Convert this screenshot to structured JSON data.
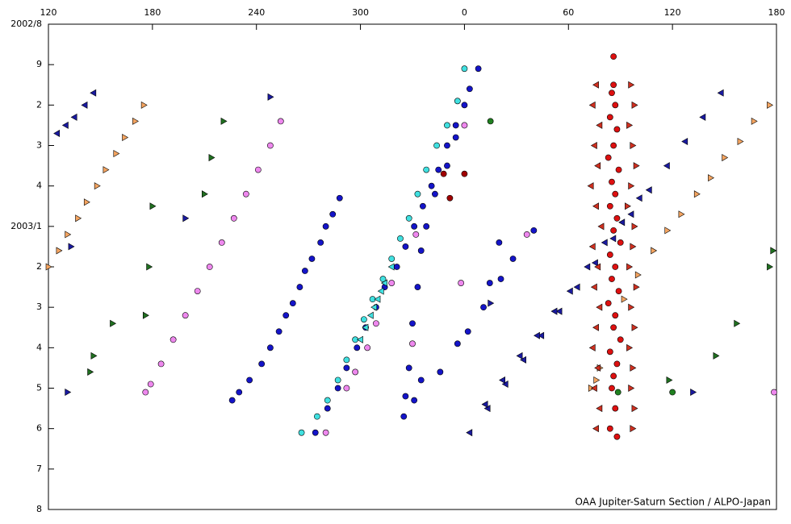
{
  "chart_data": {
    "type": "scatter",
    "annotation": "OAA Jupiter-Saturn Section / ALPO-Japan",
    "xlim": [
      120,
      540
    ],
    "xticks": [
      120,
      180,
      240,
      300,
      {
        "value": 360,
        "label": "0"
      },
      {
        "value": 420,
        "label": "60"
      },
      {
        "value": 480,
        "label": "120"
      },
      {
        "value": 540,
        "label": "180"
      }
    ],
    "ylim": [
      12,
      0
    ],
    "yticks": [
      {
        "value": 0,
        "label": "2002/8"
      },
      {
        "value": 1,
        "label": "9"
      },
      2,
      3,
      4,
      {
        "value": 5,
        "label": "2003/1"
      },
      {
        "value": 6,
        "label": "2"
      },
      {
        "value": 7,
        "label": "3"
      },
      {
        "value": 8,
        "label": "4"
      },
      {
        "value": 9,
        "label": "5"
      },
      {
        "value": 10,
        "label": "6"
      },
      {
        "value": 11,
        "label": "7"
      },
      {
        "value": 12,
        "label": "8"
      }
    ],
    "series": [
      {
        "color": "#1414c8",
        "marker": "circle",
        "x": [
          288,
          284,
          280,
          277,
          272,
          268,
          265,
          261,
          257,
          253,
          248,
          243,
          236,
          230,
          226,
          368,
          363,
          360,
          355,
          350,
          345,
          341,
          336,
          331,
          326,
          321,
          314,
          309,
          303,
          298,
          292,
          287,
          281,
          274,
          355,
          350,
          343,
          338,
          335,
          333,
          330,
          328,
          326,
          325,
          400,
          388,
          381,
          380,
          374.6,
          371,
          362,
          356,
          346,
          335,
          331
        ],
        "values": [
          4.3,
          4.7,
          5.0,
          5.4,
          5.8,
          6.1,
          6.5,
          6.9,
          7.2,
          7.6,
          8.0,
          8.4,
          8.8,
          9.1,
          9.3,
          1.1,
          1.6,
          2.0,
          2.5,
          3.0,
          3.6,
          4.0,
          4.5,
          5.0,
          5.5,
          6.0,
          6.5,
          7.0,
          7.5,
          8.0,
          8.5,
          9.0,
          9.5,
          10.1,
          2.8,
          3.5,
          4.2,
          5.0,
          5.6,
          6.5,
          7.4,
          8.5,
          9.2,
          9.7,
          5.1,
          5.8,
          6.3,
          5.4,
          6.4,
          7.0,
          7.6,
          7.9,
          8.6,
          8.8,
          9.3
        ]
      },
      {
        "color": "#40e0e0",
        "marker": "circle",
        "x": [
          360,
          356,
          350,
          344,
          338,
          333,
          328,
          323,
          318,
          313,
          307,
          302,
          297,
          292,
          287,
          281,
          275,
          266
        ],
        "values": [
          1.1,
          1.9,
          2.5,
          3.0,
          3.6,
          4.2,
          4.8,
          5.3,
          5.8,
          6.3,
          6.8,
          7.3,
          7.8,
          8.3,
          8.8,
          9.3,
          9.7,
          10.1
        ]
      },
      {
        "color": "#40e0e0",
        "marker": "triangle-left",
        "x": [
          318,
          314,
          310,
          306,
          303,
          300,
          312,
          308
        ],
        "values": [
          6.0,
          6.4,
          6.8,
          7.2,
          7.5,
          7.8,
          6.6,
          7.0
        ]
      },
      {
        "color": "#ee88ee",
        "marker": "circle",
        "x": [
          254,
          248,
          241,
          234,
          227,
          220,
          213,
          206,
          199,
          192,
          185,
          179,
          176,
          360,
          332,
          318,
          309,
          304,
          297,
          292,
          280,
          396,
          358,
          330,
          538.6
        ],
        "values": [
          2.4,
          3.0,
          3.6,
          4.2,
          4.8,
          5.4,
          6.0,
          6.6,
          7.2,
          7.8,
          8.4,
          8.9,
          9.1,
          2.5,
          5.2,
          6.4,
          7.4,
          8.0,
          8.6,
          9.0,
          10.1,
          5.2,
          6.4,
          7.9,
          9.1
        ]
      },
      {
        "color": "#dd1010",
        "marker": "circle",
        "x": [
          446,
          446,
          445,
          447,
          444,
          448,
          446,
          443,
          449,
          445,
          447,
          444,
          448,
          446,
          450,
          444,
          447,
          445,
          449,
          443,
          447,
          446,
          450,
          444,
          448,
          446,
          445,
          447,
          444,
          448
        ],
        "values": [
          0.8,
          1.5,
          1.7,
          2.0,
          2.3,
          2.6,
          3.0,
          3.3,
          3.6,
          3.9,
          4.2,
          4.5,
          4.8,
          5.1,
          5.4,
          5.7,
          6.0,
          6.3,
          6.6,
          6.9,
          7.2,
          7.5,
          7.8,
          8.1,
          8.4,
          8.7,
          9.0,
          9.5,
          10.0,
          10.2
        ]
      },
      {
        "color": "#a00000",
        "marker": "circle",
        "x": [
          348,
          360,
          351.6
        ],
        "values": [
          3.7,
          3.7,
          4.3
        ]
      },
      {
        "color": "#208020",
        "marker": "circle",
        "x": [
          375,
          480,
          448.6
        ],
        "values": [
          2.4,
          9.1,
          9.1
        ]
      },
      {
        "color": "#1a1aa0",
        "marker": "triangle-left",
        "x": [
          508,
          497.6,
          487.3,
          476.9,
          466.6,
          456.2,
          445.9,
          435.5,
          425.1,
          414.8,
          404.4,
          394.1,
          383.7,
          373.4,
          363,
          461,
          451,
          441,
          431,
          421,
          412,
          402,
          392,
          382,
          372,
          146,
          141,
          135,
          130,
          125
        ],
        "values": [
          1.7,
          2.3,
          2.9,
          3.5,
          4.1,
          4.7,
          5.3,
          5.9,
          6.5,
          7.1,
          7.7,
          8.3,
          8.9,
          9.5,
          10.1,
          4.3,
          4.9,
          5.4,
          6.0,
          6.6,
          7.1,
          7.7,
          8.2,
          8.8,
          9.4,
          1.7,
          2.0,
          2.3,
          2.5,
          2.7
        ]
      },
      {
        "color": "#1a1aa0",
        "marker": "triangle-right",
        "x": [
          248,
          199,
          133,
          131,
          375,
          491.8
        ],
        "values": [
          1.8,
          4.8,
          5.5,
          9.1,
          6.9,
          9.1
        ]
      },
      {
        "color": "#f4a460",
        "marker": "triangle-right",
        "x": [
          175,
          170,
          164,
          159,
          153,
          148,
          142,
          137,
          131,
          126,
          120,
          536,
          527,
          519,
          510,
          502,
          494,
          485,
          477,
          469,
          460,
          452,
          433,
          436,
          438
        ],
        "values": [
          2.0,
          2.4,
          2.8,
          3.2,
          3.6,
          4.0,
          4.4,
          4.8,
          5.2,
          5.6,
          6.0,
          2.0,
          2.4,
          2.9,
          3.3,
          3.8,
          4.2,
          4.7,
          5.1,
          5.6,
          6.2,
          6.8,
          9.0,
          8.8,
          8.5
        ]
      },
      {
        "color": "#d03020",
        "marker": "triangle-left",
        "x": [
          436,
          434,
          438,
          435,
          437,
          433,
          436,
          439,
          434,
          437,
          435,
          438,
          436,
          434,
          437,
          435,
          438,
          436
        ],
        "values": [
          1.5,
          2.0,
          2.5,
          3.0,
          3.5,
          4.0,
          4.5,
          5.0,
          5.5,
          6.0,
          6.5,
          7.0,
          7.5,
          8.0,
          8.5,
          9.0,
          9.5,
          10.0
        ]
      },
      {
        "color": "#d03020",
        "marker": "triangle-right",
        "x": [
          456,
          458,
          455,
          457,
          459,
          456,
          454,
          458,
          457,
          455,
          459,
          456,
          458,
          455,
          457,
          456,
          458,
          457
        ],
        "values": [
          1.5,
          2.0,
          2.5,
          3.0,
          3.5,
          4.0,
          4.5,
          5.0,
          5.5,
          6.0,
          6.5,
          7.0,
          7.5,
          8.0,
          8.5,
          9.0,
          9.5,
          10.0
        ]
      },
      {
        "color": "#207020",
        "marker": "triangle-right",
        "x": [
          221,
          214,
          210,
          180,
          178,
          176,
          157,
          146,
          144,
          536,
          538,
          517,
          505,
          478
        ],
        "values": [
          2.4,
          3.3,
          4.2,
          4.5,
          6.0,
          7.2,
          7.4,
          8.2,
          8.6,
          6.0,
          5.6,
          7.4,
          8.2,
          8.8
        ]
      }
    ]
  }
}
